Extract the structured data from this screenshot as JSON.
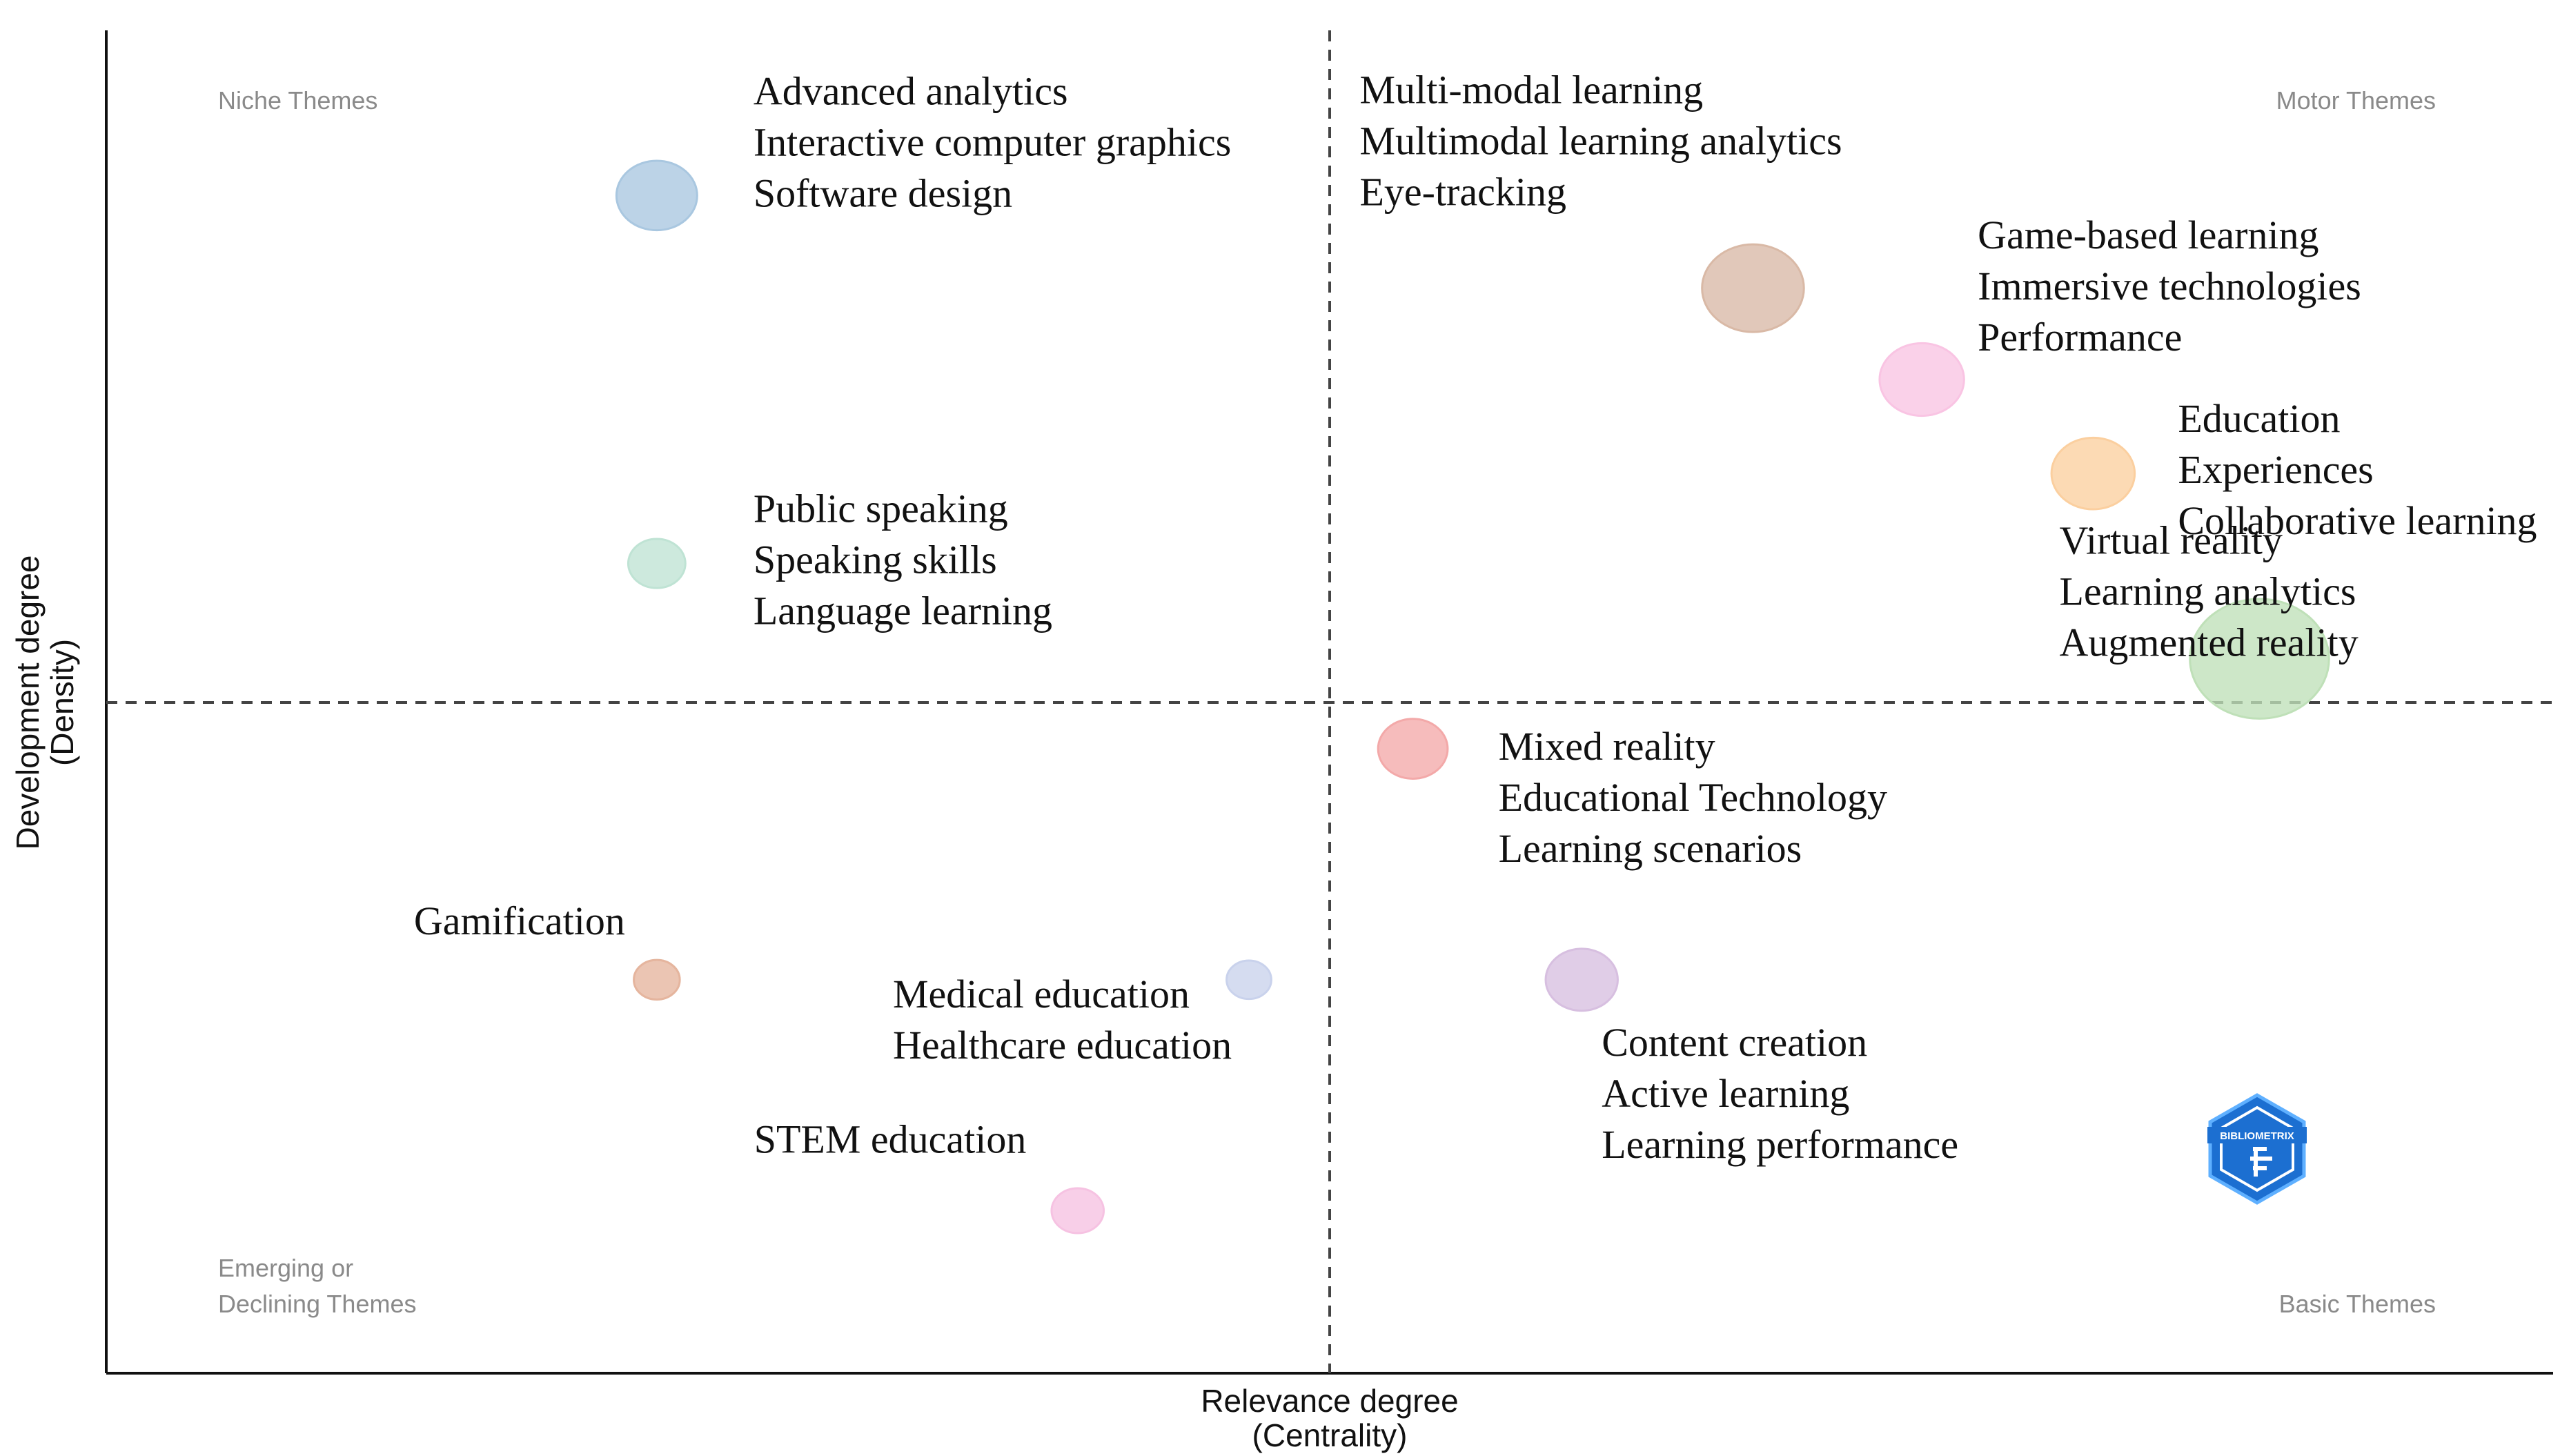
{
  "chart_data": {
    "type": "scatter",
    "subtype": "bubble",
    "title": "",
    "xlabel": "Relevance degree",
    "xlabel_sub": "(Centrality)",
    "ylabel": "Development degree",
    "ylabel_sub": "(Density)",
    "xlim": [
      0,
      1
    ],
    "ylim": [
      0,
      1
    ],
    "x_reference": 0.5,
    "y_reference": 0.5,
    "axis_ticks": false,
    "grid": false,
    "quadrant_labels": {
      "top_left": [
        "Niche Themes"
      ],
      "top_right": [
        "Motor Themes"
      ],
      "bottom_left": [
        "Emerging or",
        "Declining Themes"
      ],
      "bottom_right": [
        "Basic Themes"
      ]
    },
    "logo": {
      "type": "Bibliometrix logo",
      "text": "BIBLIOMETRIX",
      "position": "bottom-right"
    },
    "clusters": [
      {
        "words": [
          "Advanced analytics",
          "Interactive computer graphics",
          "Software design"
        ],
        "x": 0.225,
        "y": 0.877,
        "size": 0.45,
        "color": "#a9c7e0"
      },
      {
        "words": [
          "Public speaking",
          "Speaking skills",
          "Language learning"
        ],
        "x": 0.225,
        "y": 0.603,
        "size": 0.26,
        "color": "#bfe3d4"
      },
      {
        "words": [
          "Multi-modal learning",
          "Multimodal learning analytics",
          "Eye-tracking"
        ],
        "x": 0.673,
        "y": 0.808,
        "size": 0.62,
        "color": "#d9b9a6"
      },
      {
        "words": [
          "Game-based learning",
          "Immersive technologies",
          "Performance"
        ],
        "x": 0.742,
        "y": 0.74,
        "size": 0.48,
        "color": "#f9c4e3"
      },
      {
        "words": [
          "Education",
          "Experiences",
          "Collaborative learning"
        ],
        "x": 0.812,
        "y": 0.67,
        "size": 0.47,
        "color": "#fbcf9f"
      },
      {
        "words": [
          "Virtual reality",
          "Learning analytics",
          "Augmented reality"
        ],
        "x": 0.88,
        "y": 0.532,
        "size": 0.92,
        "color": "#bfe0b8"
      },
      {
        "words": [
          "Mixed reality",
          "Educational Technology",
          "Learning scenarios"
        ],
        "x": 0.534,
        "y": 0.465,
        "size": 0.36,
        "color": "#f3a9a9"
      },
      {
        "words": [
          "Content creation",
          "Active learning",
          "Learning performance"
        ],
        "x": 0.603,
        "y": 0.293,
        "size": 0.38,
        "color": "#d7bfe0"
      },
      {
        "words": [
          "Gamification"
        ],
        "x": 0.225,
        "y": 0.293,
        "size": 0.17,
        "color": "#e5b59e"
      },
      {
        "words": [
          "Medical education",
          "Healthcare education"
        ],
        "x": 0.467,
        "y": 0.293,
        "size": 0.16,
        "color": "#c9d2ec"
      },
      {
        "words": [
          "STEM education"
        ],
        "x": 0.397,
        "y": 0.121,
        "size": 0.22,
        "color": "#f6c2e2"
      }
    ]
  }
}
